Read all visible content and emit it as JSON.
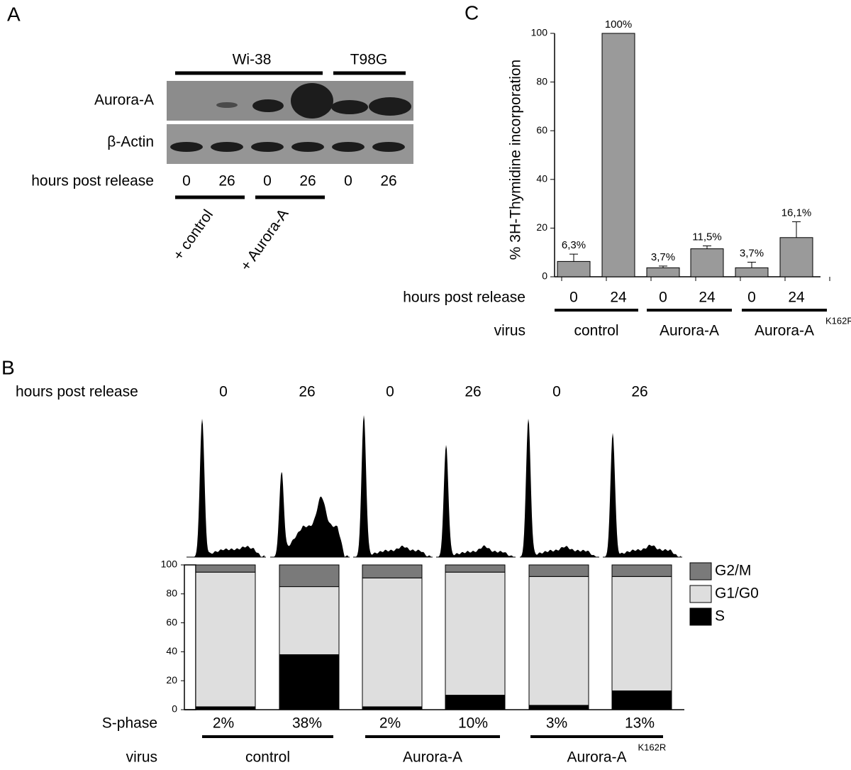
{
  "panels": {
    "a": "A",
    "b": "B",
    "c": "C"
  },
  "blot": {
    "groups": [
      "Wi-38",
      "T98G"
    ],
    "rows": [
      "Aurora-A",
      "β-Actin"
    ],
    "row_label": "hours post release",
    "lanes": [
      "0",
      "26",
      "0",
      "26",
      "0",
      "26"
    ],
    "treatments": [
      "+ control",
      "+ Aurora-A"
    ]
  },
  "chart_data": [
    {
      "type": "bar",
      "y_label": "% 3H-Thymidine incorporation",
      "categories": [
        "0",
        "24",
        "0",
        "24",
        "0",
        "24"
      ],
      "category_label": "hours post release",
      "group_label": "virus",
      "groups": [
        {
          "label": "control"
        },
        {
          "label": "Aurora-A"
        },
        {
          "label": "Aurora-A",
          "superscript": "K162R"
        }
      ],
      "values": [
        6.3,
        100,
        3.7,
        11.5,
        3.7,
        16.1
      ],
      "value_labels": [
        "6,3%",
        "100%",
        "3,7%",
        "11,5%",
        "3,7%",
        "16,1%"
      ],
      "errors": [
        3,
        0,
        0.7,
        1.2,
        2.3,
        6.5
      ],
      "color": "#9a9a9a",
      "ylim": [
        0,
        100
      ],
      "yticks": [
        0,
        20,
        40,
        60,
        80,
        100
      ]
    },
    {
      "type": "stacked_bar",
      "categories": [
        "0",
        "26",
        "0",
        "26",
        "0",
        "26"
      ],
      "category_label": "hours post release",
      "row_label": "S-phase",
      "group_label": "virus",
      "groups": [
        {
          "label": "control"
        },
        {
          "label": "Aurora-A"
        },
        {
          "label": "Aurora-A",
          "superscript": "K162R"
        }
      ],
      "series": [
        {
          "name": "S",
          "color": "#000000",
          "values": [
            2,
            38,
            2,
            10,
            3,
            13
          ],
          "value_labels": [
            "2%",
            "38%",
            "2%",
            "10%",
            "3%",
            "13%"
          ]
        },
        {
          "name": "G1/G0",
          "color": "#dedede",
          "values": [
            93,
            47,
            89,
            85,
            89,
            79
          ]
        },
        {
          "name": "G2/M",
          "color": "#7a7a7a",
          "values": [
            5,
            15,
            9,
            5,
            8,
            8
          ]
        }
      ],
      "ylim": [
        0,
        100
      ],
      "yticks": [
        0,
        20,
        40,
        60,
        80,
        100
      ]
    }
  ]
}
